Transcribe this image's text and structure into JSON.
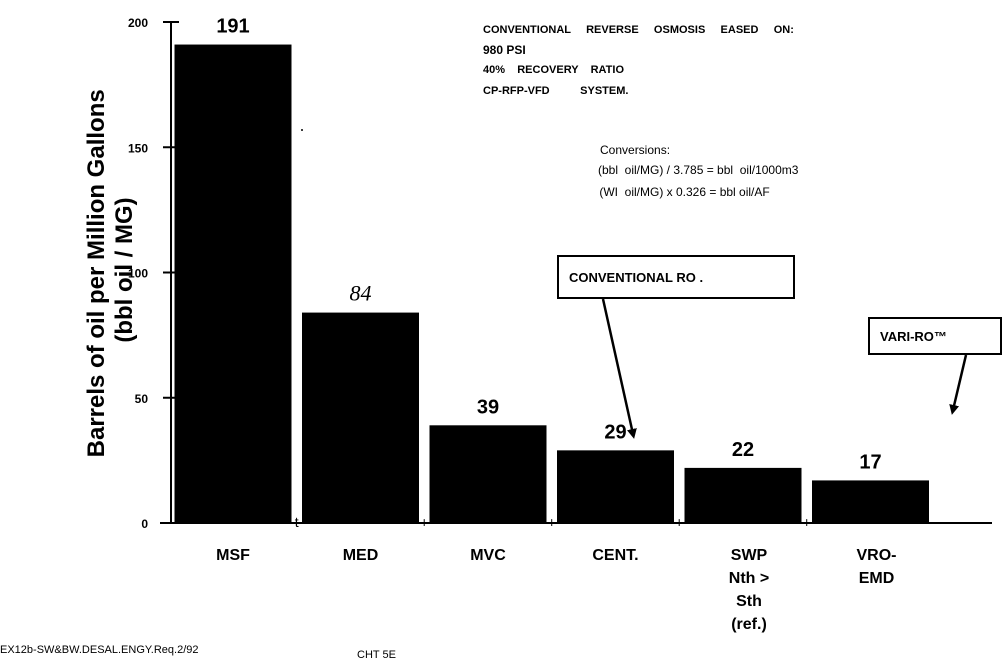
{
  "chart_data": {
    "type": "bar",
    "categories": [
      "MSF",
      "MED",
      "MVC",
      "CENT.",
      "SWP Nth > Sth (ref.)",
      "VRO-EMD"
    ],
    "category_lines": [
      [
        "MSF"
      ],
      [
        "MED"
      ],
      [
        "MVC"
      ],
      [
        "CENT."
      ],
      [
        "SWP",
        "Nth >",
        "Sth",
        "(ref.)"
      ],
      [
        "VRO-",
        "EMD"
      ]
    ],
    "values": [
      191,
      84,
      39,
      29,
      22,
      17
    ],
    "data_labels": [
      "191",
      "84",
      "39",
      "29",
      "22",
      "17"
    ],
    "ylabel": [
      "Barrels of oil per Million Gallons",
      "(bbl oil / MG)"
    ],
    "ylim": [
      0,
      200
    ],
    "yticks": [
      "0",
      "50",
      "100",
      "150",
      "200"
    ],
    "xaxis_marks": [
      "t",
      "+",
      "+",
      "+",
      "+"
    ],
    "grid": false,
    "bar_color": "#000000"
  },
  "notes": {
    "basis_line1": "CONVENTIONAL     REVERSE     OSMOSIS     EASED     ON:",
    "basis_line2": "980 PSI",
    "basis_line3": "40%    RECOVERY    RATIO",
    "basis_line4": "CP-RFP-VFD          SYSTEM.",
    "conversions_title": "Conversions:",
    "conversion1": "(bbl  oil/MG) / 3.785 = bbl  oil/1000m3",
    "conversion2": " (WI  oil/MG) x 0.326 = bbl oil/AF"
  },
  "callouts": {
    "conventional_ro": "CONVENTIONAL RO  .",
    "vari_ro": "VARI-RO™"
  },
  "footer": {
    "left": "EX12b-SW&BW.DESAL.ENGY.Req.2/92",
    "center": "CHT 5E"
  }
}
